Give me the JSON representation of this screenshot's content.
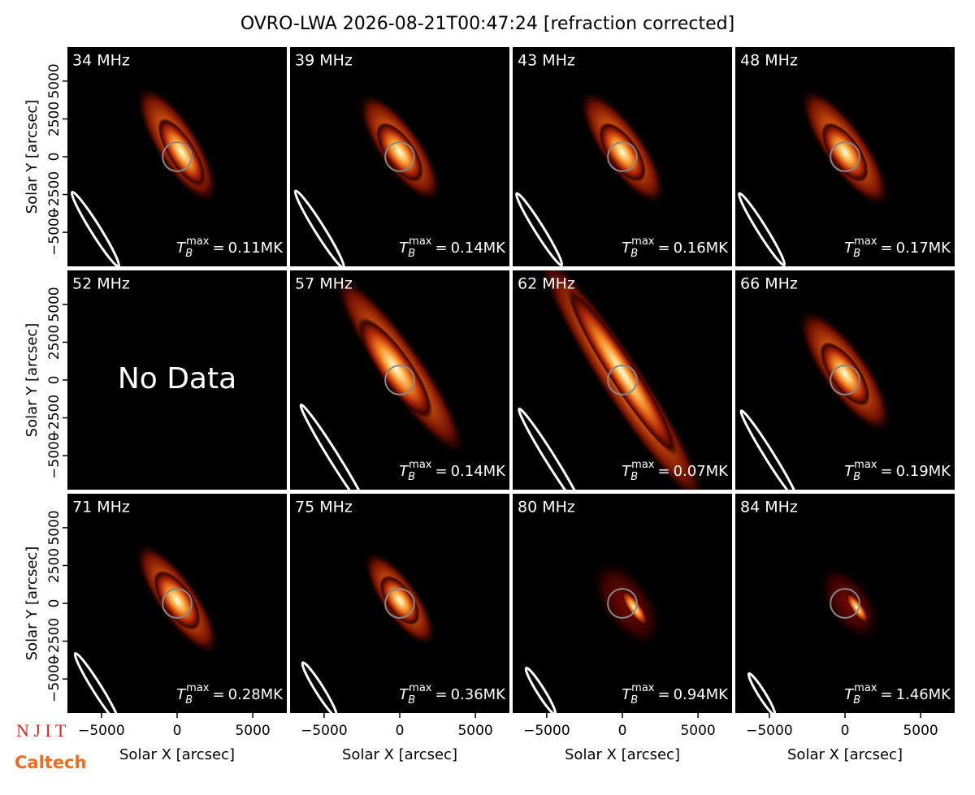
{
  "title": "OVRO-LWA 2026-08-21T00:47:24 [refraction corrected]",
  "axes": {
    "xlabel": "Solar X [arcsec]",
    "ylabel": "Solar Y [arcsec]",
    "xlim": [
      -7250,
      7250
    ],
    "ylim": [
      -7250,
      7250
    ],
    "xticks": [
      {
        "value": -5000,
        "label": "−5000"
      },
      0,
      5000
    ],
    "yticks": [
      {
        "value": -5000,
        "label": "−5000"
      },
      {
        "value": -2500,
        "label": "−2500"
      },
      0,
      2500,
      5000
    ]
  },
  "tb_symbol": {
    "main": "T",
    "sub": "B",
    "sup": "max",
    "eq": "="
  },
  "chart_data": [
    {
      "type": "image",
      "title": "34 MHz",
      "annotation": "0.11MK"
    },
    {
      "type": "image",
      "title": "39 MHz",
      "annotation": "0.14MK"
    },
    {
      "type": "image",
      "title": "43 MHz",
      "annotation": "0.16MK"
    },
    {
      "type": "image",
      "title": "48 MHz",
      "annotation": "0.17MK"
    },
    {
      "type": "image",
      "title": "52 MHz",
      "note": "No Data"
    },
    {
      "type": "image",
      "title": "57 MHz",
      "annotation": "0.14MK"
    },
    {
      "type": "image",
      "title": "62 MHz",
      "annotation": "0.07MK"
    },
    {
      "type": "image",
      "title": "66 MHz",
      "annotation": "0.19MK"
    },
    {
      "type": "image",
      "title": "71 MHz",
      "annotation": "0.28MK"
    },
    {
      "type": "image",
      "title": "75 MHz",
      "annotation": "0.36MK"
    },
    {
      "type": "image",
      "title": "80 MHz",
      "annotation": "0.94MK"
    },
    {
      "type": "image",
      "title": "84 MHz",
      "annotation": "1.46MK"
    }
  ],
  "logos": [
    "N J I T",
    "Caltech"
  ]
}
